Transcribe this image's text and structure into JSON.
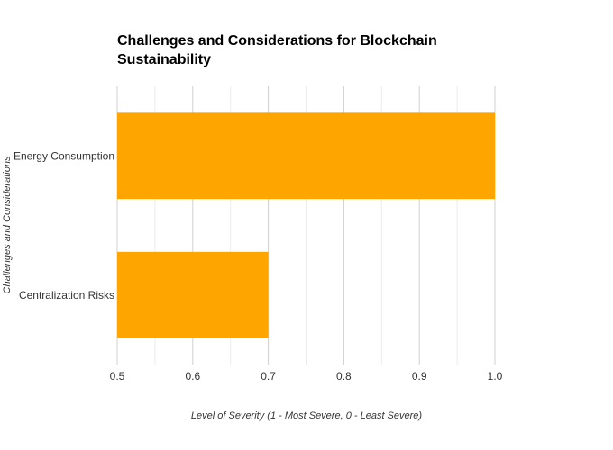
{
  "chart_data": {
    "type": "bar",
    "orientation": "horizontal",
    "title": "Challenges and Considerations for Blockchain Sustainability",
    "xlabel": "Level of Severity (1 - Most Severe, 0 - Least Severe)",
    "ylabel": "Challenges and Considerations",
    "categories": [
      "Energy Consumption",
      "Centralization Risks"
    ],
    "values": [
      1.0,
      0.7
    ],
    "xlim": [
      0.5,
      1.0
    ],
    "xticks": [
      "0.5",
      "0.6",
      "0.7",
      "0.8",
      "0.9",
      "1.0"
    ],
    "xtick_values": [
      0.5,
      0.6,
      0.7,
      0.8,
      0.9,
      1.0
    ],
    "bar_color": "#FFA500",
    "grid": true
  }
}
